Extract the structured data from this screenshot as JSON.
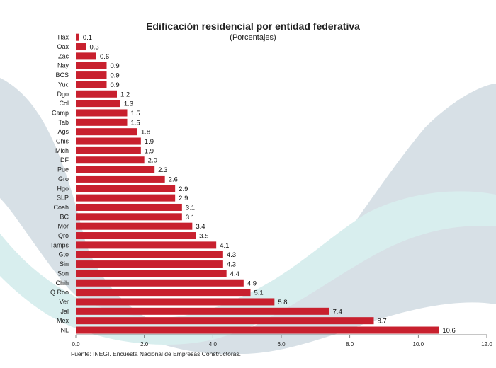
{
  "chart_data": {
    "type": "bar",
    "orientation": "horizontal",
    "title": "Edificación residencial por entidad federativa",
    "subtitle": "(Porcentajes)",
    "categories": [
      "Tlax",
      "Oax",
      "Zac",
      "Nay",
      "BCS",
      "Yuc",
      "Dgo",
      "Col",
      "Camp",
      "Tab",
      "Ags",
      "Chis",
      "Mich",
      "DF",
      "Pue",
      "Gro",
      "Hgo",
      "SLP",
      "Coah",
      "BC",
      "Mor",
      "Qro",
      "Tamps",
      "Gto",
      "Sin",
      "Son",
      "Chih",
      "Q Roo",
      "Ver",
      "Jal",
      "Mex",
      "NL"
    ],
    "values": [
      0.1,
      0.3,
      0.6,
      0.9,
      0.9,
      0.9,
      1.2,
      1.3,
      1.5,
      1.5,
      1.8,
      1.9,
      1.9,
      2.0,
      2.3,
      2.6,
      2.9,
      2.9,
      3.1,
      3.1,
      3.4,
      3.5,
      4.1,
      4.3,
      4.3,
      4.4,
      4.9,
      5.1,
      5.8,
      7.4,
      8.7,
      10.6
    ],
    "value_labels": [
      "0.1",
      "0.3",
      "0.6",
      "0.9",
      "0.9",
      "0.9",
      "1.2",
      "1.3",
      "1.5",
      "1.5",
      "1.8",
      "1.9",
      "1.9",
      "2.0",
      "2.3",
      "2.6",
      "2.9",
      "2.9",
      "3.1",
      "3.1",
      "3.4",
      "3.5",
      "4.1",
      "4.3",
      "4.3",
      "4.4",
      "4.9",
      "5.1",
      "5.8",
      "7.4",
      "8.7",
      "10.6"
    ],
    "x_ticks": [
      "0.0",
      "2.0",
      "4.0",
      "6.0",
      "8.0",
      "10.0",
      "12.0"
    ],
    "xlim": [
      0,
      12
    ],
    "xlabel": "",
    "ylabel": "",
    "bar_color": "#c8202e",
    "source": "Fuente: INEGI. Encuesta Nacional de Empresas Constructoras."
  },
  "colors": {
    "swoosh_light": "#d7e0e6",
    "swoosh_teal": "#d8eeee"
  }
}
